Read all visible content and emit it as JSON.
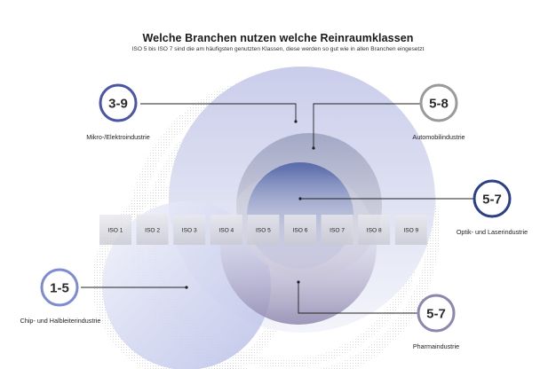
{
  "title": "Welche Branchen nutzen welche Reinraumklassen",
  "subtitle": "ISO 5 bis ISO 7 sind die am häufigsten genutzten Klassen, diese werden so gut wie in allen Branchen eingesetzt",
  "iso_classes": [
    "ISO 1",
    "ISO 2",
    "ISO 3",
    "ISO 4",
    "ISO 5",
    "ISO 6",
    "ISO 7",
    "ISO 8",
    "ISO 9"
  ],
  "industries": [
    {
      "range": "3-9",
      "label": "Mikro-/Elektroindustrie",
      "color": "#4a55a8"
    },
    {
      "range": "5-8",
      "label": "Automobilindustrie",
      "color": "#8c8c8c"
    },
    {
      "range": "5-7",
      "label": "Optik- und Laserindustrie",
      "color": "#2d3f87"
    },
    {
      "range": "1-5",
      "label": "Chip- und Halbleiterindustrie",
      "color": "#7d8bd2"
    },
    {
      "range": "5-7",
      "label": "Pharmaindustrie",
      "color": "#8e86ad"
    }
  ]
}
